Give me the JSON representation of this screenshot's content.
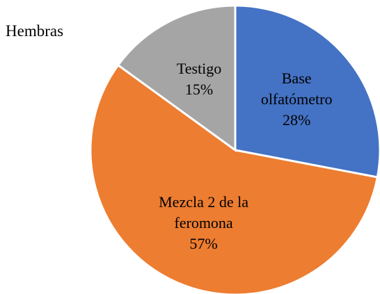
{
  "chart_data": {
    "type": "pie",
    "title": "Hembras",
    "categories": [
      "Base olfatómetro",
      "Mezcla 2 de la feromona",
      "Testigo"
    ],
    "values": [
      28,
      57,
      15
    ],
    "value_labels": [
      "28%",
      "57%",
      "15%"
    ],
    "colors": [
      "#4472c4",
      "#ed7d31",
      "#a5a5a5"
    ]
  }
}
